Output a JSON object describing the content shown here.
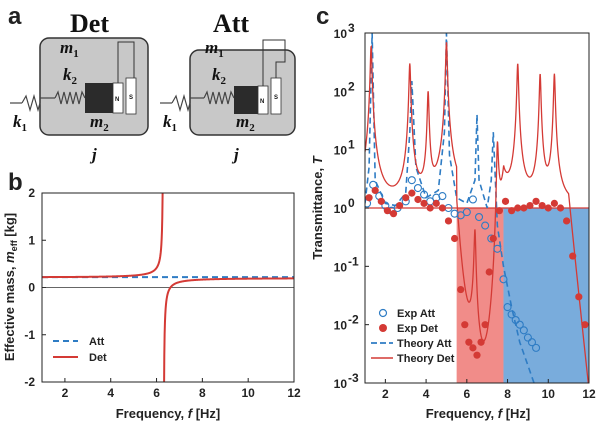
{
  "panels": {
    "a": {
      "label": "a"
    },
    "b": {
      "label": "b"
    },
    "c": {
      "label": "c"
    }
  },
  "schematic": {
    "det": {
      "title": "Det"
    },
    "att": {
      "title": "Att"
    },
    "symbols": {
      "m": "m",
      "k": "k",
      "j": "j",
      "one": "1",
      "two": "2"
    },
    "magnet_labels": {
      "north": "N",
      "south": "S"
    }
  },
  "chart_data": [
    {
      "id": "b",
      "type": "line",
      "xlabel": "Frequency,",
      "xlabel_symbol": "f",
      "xlabel_unit": "[Hz]",
      "ylabel": "Effective mass,",
      "ylabel_symbol": "m",
      "ylabel_sub": "eff",
      "ylabel_unit": "[kg]",
      "xlim": [
        1,
        12
      ],
      "ylim": [
        -2,
        2
      ],
      "xticks": [
        2,
        4,
        6,
        8,
        10,
        12
      ],
      "yticks": [
        -2,
        -1,
        0,
        1,
        2
      ],
      "reference_line": {
        "y": 0
      },
      "series": [
        {
          "name": "Att",
          "style": "dashed",
          "color": "#2e7cc4",
          "constant": 0.22
        },
        {
          "name": "Det",
          "style": "solid",
          "color": "#d43a35",
          "formula": "m0 + A*f^2/(fr^2 - f^2)",
          "m0": 0.22,
          "A": 0.02,
          "fr": 6.3
        }
      ],
      "legend": {
        "position": "lower-left",
        "entries": [
          "Att",
          "Det"
        ]
      }
    },
    {
      "id": "c",
      "type": "line",
      "scale_y": "log",
      "xlabel": "Frequency,",
      "xlabel_symbol": "f",
      "xlabel_unit": "[Hz]",
      "ylabel": "Transmittance,",
      "ylabel_symbol": "T",
      "xlim": [
        1,
        12
      ],
      "ylim_exp": [
        -3,
        3
      ],
      "xticks": [
        2,
        4,
        6,
        8,
        10,
        12
      ],
      "yticks_exp": [
        -3,
        -2,
        -1,
        0,
        1,
        2,
        3
      ],
      "ytick_base": "10",
      "reference_line": {
        "y": 1
      },
      "bands": [
        {
          "name": "Det stop band",
          "x": [
            5.5,
            7.8
          ],
          "color": "#ef7f7c"
        },
        {
          "name": "Att stop band",
          "x": [
            7.8,
            12
          ],
          "color": "#6aa3d8"
        }
      ],
      "series": [
        {
          "name": "Exp Att",
          "style": "open-circle",
          "color": "#2e7cc4",
          "x": [
            1.1,
            1.4,
            1.7,
            2.0,
            2.3,
            2.6,
            3.0,
            3.3,
            3.6,
            3.9,
            4.2,
            4.5,
            4.8,
            5.1,
            5.4,
            5.7,
            6.0,
            6.3,
            6.6,
            6.9,
            7.2,
            7.5,
            7.8,
            8.0,
            8.2,
            8.4,
            8.6,
            8.8,
            9.0,
            9.2,
            9.4
          ],
          "y": [
            1.2,
            2.5,
            1.6,
            1.1,
            0.9,
            1.0,
            1.3,
            3.0,
            2.2,
            1.7,
            1.3,
            1.5,
            1.6,
            1.0,
            0.8,
            0.75,
            0.85,
            1.4,
            0.7,
            0.5,
            0.3,
            0.2,
            0.06,
            0.02,
            0.015,
            0.012,
            0.01,
            0.008,
            0.006,
            0.005,
            0.004
          ]
        },
        {
          "name": "Exp Det",
          "style": "filled-circle",
          "color": "#d43a35",
          "x": [
            1.2,
            1.5,
            1.8,
            2.1,
            2.4,
            2.7,
            3.0,
            3.3,
            3.6,
            3.9,
            4.2,
            4.5,
            4.8,
            5.1,
            5.4,
            5.7,
            5.9,
            6.1,
            6.3,
            6.5,
            6.7,
            6.9,
            7.1,
            7.3,
            7.6,
            7.9,
            8.2,
            8.5,
            8.8,
            9.1,
            9.4,
            9.7,
            10.0,
            10.3,
            10.6,
            10.9,
            11.2,
            11.5,
            11.8
          ],
          "y": [
            1.5,
            2.0,
            1.3,
            0.9,
            0.8,
            1.1,
            1.5,
            1.8,
            1.4,
            1.2,
            1.0,
            1.2,
            1.0,
            0.6,
            0.3,
            0.04,
            0.01,
            0.005,
            0.004,
            0.003,
            0.005,
            0.01,
            0.08,
            0.3,
            0.9,
            1.3,
            0.9,
            1.0,
            1.0,
            1.1,
            1.3,
            1.1,
            1.0,
            1.2,
            1.0,
            0.6,
            0.15,
            0.03,
            0.01
          ]
        },
        {
          "name": "Theory Att",
          "style": "dashed",
          "color": "#2e7cc4",
          "x": [
            1.0,
            1.2,
            1.35,
            1.5,
            2.0,
            2.5,
            3.0,
            3.2,
            3.3,
            3.5,
            4.0,
            4.6,
            4.9,
            5.0,
            5.15,
            5.5,
            6.0,
            6.4,
            6.5,
            6.6,
            7.0,
            7.2,
            7.3,
            7.5,
            7.8,
            8.2,
            8.6,
            9.0,
            9.3
          ],
          "y": [
            1.2,
            5.0,
            1000,
            3.0,
            1.2,
            1.1,
            1.8,
            20,
            150,
            5.0,
            1.5,
            2.0,
            20,
            1000,
            8.0,
            1.5,
            1.2,
            3.0,
            40,
            3.0,
            1.0,
            3.0,
            20,
            0.5,
            0.1,
            0.02,
            0.005,
            0.002,
            0.001
          ]
        },
        {
          "name": "Theory Det",
          "style": "solid",
          "color": "#d43a35",
          "resonances": [
            1.3,
            3.2,
            4.1,
            5.0,
            6.4,
            7.5,
            8.5,
            9.6,
            10.3
          ],
          "peaks": [
            600,
            300,
            100,
            700,
            250,
            250,
            300,
            200,
            200
          ],
          "baseline": 1.0,
          "stop_band": [
            5.5,
            7.8
          ],
          "floor": 0.001,
          "decay_after": 11.0
        },
        {
          "name": "Theory Det baseline",
          "style": "solid",
          "color": "#d43a35",
          "constant": 1.0
        }
      ],
      "legend": {
        "position": "lower-left",
        "entries": [
          "Exp Att",
          "Exp Det",
          "Theory Att",
          "Theory Det"
        ]
      }
    }
  ]
}
